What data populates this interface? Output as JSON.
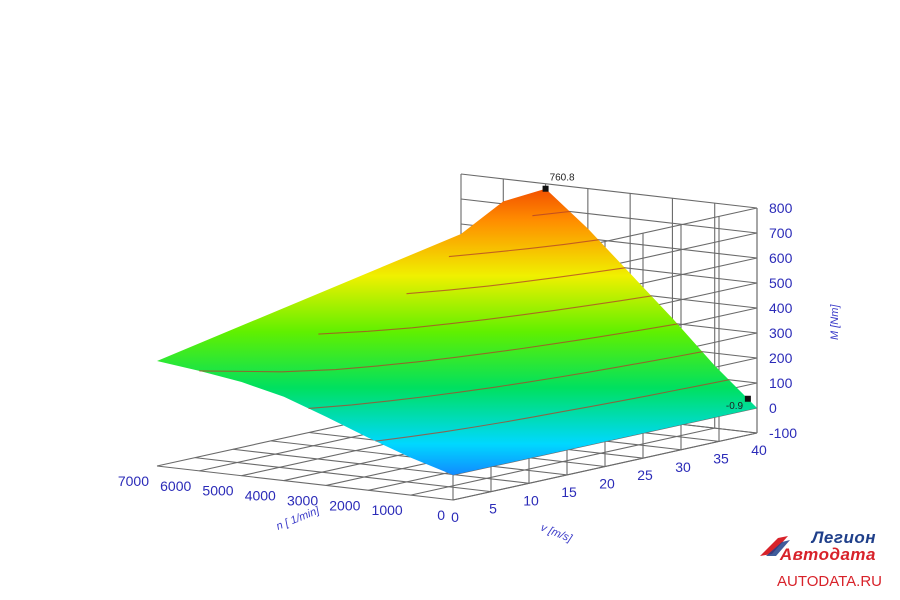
{
  "chart_data": {
    "type": "surface",
    "title": "",
    "xlabel": "n [ 1/min]",
    "ylabel": "v [m/s]",
    "zlabel": "M [Nm]",
    "xlim": [
      0,
      7000
    ],
    "ylim": [
      0,
      40
    ],
    "zlim": [
      -100,
      800
    ],
    "x_ticks": [
      "0",
      "1000",
      "2000",
      "3000",
      "4000",
      "5000",
      "6000",
      "7000"
    ],
    "y_ticks": [
      "0",
      "5",
      "10",
      "15",
      "20",
      "25",
      "30",
      "35",
      "40"
    ],
    "z_ticks": [
      "-100",
      "0",
      "100",
      "200",
      "300",
      "400",
      "500",
      "600",
      "700",
      "800"
    ],
    "colormap": [
      "#1e4cff",
      "#00d8ff",
      "#00e060",
      "#60f000",
      "#f0f000",
      "#ff8c00",
      "#e82000"
    ],
    "surface_profile": {
      "n_values": [
        0,
        1000,
        2000,
        3000,
        4000,
        5000,
        6000,
        7000
      ],
      "M_at_v0": [
        0,
        50,
        110,
        175,
        235,
        275,
        300,
        320
      ],
      "M_at_v40": [
        0,
        150,
        320,
        480,
        640,
        780,
        710,
        560
      ],
      "M_max_edge": [
        0,
        120,
        300,
        470,
        640,
        760,
        700,
        560
      ]
    },
    "markers": [
      {
        "label": "760.8",
        "description": "maximum"
      },
      {
        "label": "-0.9",
        "description": "minimum"
      }
    ]
  },
  "branding": {
    "logo_line1": "Легион",
    "logo_line2": "Автодата",
    "url": "AUTODATA.RU"
  }
}
